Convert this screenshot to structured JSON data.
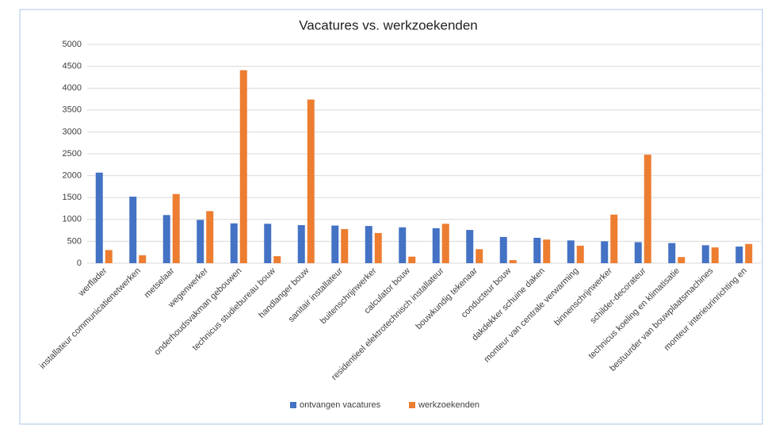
{
  "chart_data": {
    "type": "bar",
    "title": "Vacatures vs. werkzoekenden",
    "categories": [
      "werflader",
      "installateur communicatienetwerken",
      "metselaar",
      "wegenwerker",
      "onderhoudsvakman gebouwen",
      "technicus studiebureau bouw",
      "handlanger bouw",
      "sanitair installateur",
      "buitenschrijnwerker",
      "calculator bouw",
      "residentieel elektrotechnisch installateur",
      "bouwkundig tekenaar",
      "conducteur bouw",
      "dakdekker schuine daken",
      "monteur van centrale verwarming",
      "binnenschrijnwerker",
      "schilder-decorateur",
      "technicus koeling en klimatisatie",
      "bestuurder van bouwplaatsmachines",
      "monteur interieurinrichting en"
    ],
    "series": [
      {
        "name": "ontvangen vacatures",
        "color": "#4472c4",
        "values": [
          2070,
          1520,
          1100,
          990,
          910,
          900,
          870,
          860,
          850,
          820,
          800,
          760,
          600,
          580,
          520,
          500,
          480,
          460,
          410,
          380
        ]
      },
      {
        "name": "werkzoekenden",
        "color": "#ed7d31",
        "values": [
          300,
          180,
          1580,
          1190,
          4410,
          160,
          3740,
          780,
          690,
          150,
          900,
          320,
          70,
          540,
          400,
          1110,
          2480,
          140,
          360,
          440
        ]
      }
    ],
    "ylim": [
      0,
      5000
    ],
    "yticks": [
      0,
      500,
      1000,
      1500,
      2000,
      2500,
      3000,
      3500,
      4000,
      4500,
      5000
    ],
    "grid": true,
    "legend": "bottom"
  }
}
